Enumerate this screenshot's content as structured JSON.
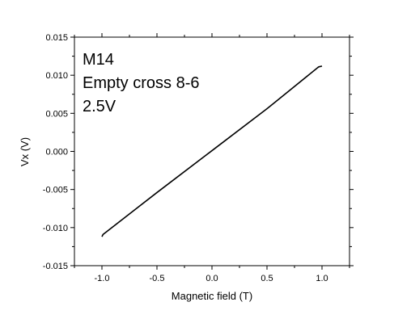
{
  "chart_data": {
    "type": "line",
    "title": "",
    "annotations": [
      "M14",
      "Empty cross 8-6",
      "2.5V"
    ],
    "xlabel": "Magnetic field (T)",
    "ylabel": "Vx (V)",
    "xlim": [
      -1.25,
      1.25
    ],
    "ylim": [
      -0.015,
      0.015
    ],
    "xticks": [
      -1.0,
      -0.5,
      0.0,
      0.5,
      1.0
    ],
    "xtick_labels": [
      "-1.0",
      "-0.5",
      "0.0",
      "0.5",
      "1.0"
    ],
    "yticks": [
      -0.015,
      -0.01,
      -0.005,
      0.0,
      0.005,
      0.01,
      0.015
    ],
    "ytick_labels": [
      "-0.015",
      "-0.010",
      "-0.005",
      "0.000",
      "0.005",
      "0.010",
      "0.015"
    ],
    "grid": false,
    "legend": "none",
    "series": [
      {
        "color": "#000000",
        "x": [
          -1.0,
          -0.99,
          -0.5,
          0.0,
          0.5,
          0.97,
          1.0
        ],
        "y": [
          -0.0112,
          -0.0109,
          -0.0054,
          0.0001,
          0.0056,
          0.0111,
          0.0112
        ]
      }
    ]
  }
}
